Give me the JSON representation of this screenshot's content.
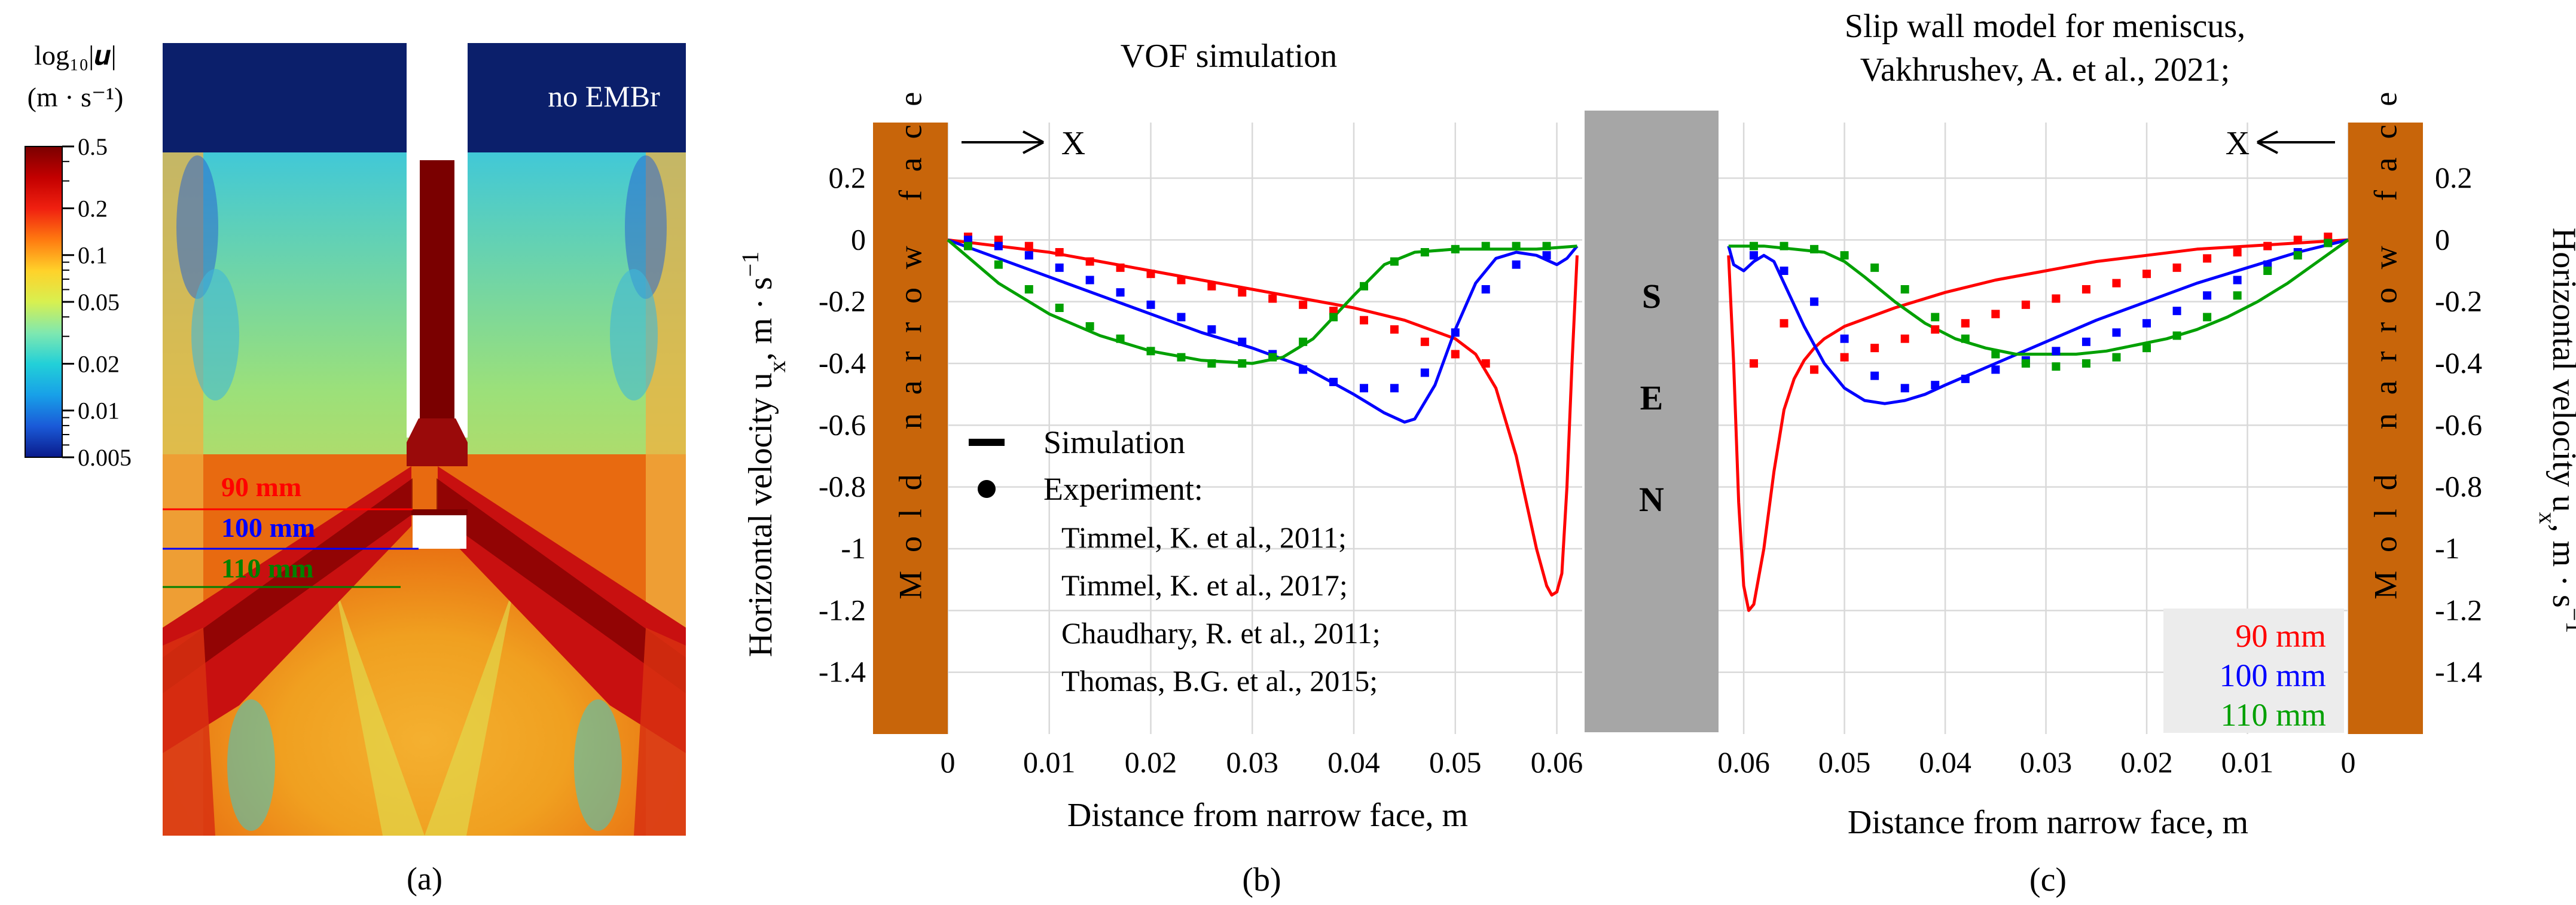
{
  "panel_a": {
    "label": "(a)",
    "overlay_text": "no EMBr",
    "colorbar": {
      "title_line1": "log₁₀|𝒖|",
      "title_line2": "(m · s⁻¹)",
      "ticks": [
        {
          "label": "0.5",
          "value": 0.5
        },
        {
          "label": "0.2",
          "value": 0.2
        },
        {
          "label": "0.1",
          "value": 0.1
        },
        {
          "label": "0.05",
          "value": 0.05
        },
        {
          "label": "0.02",
          "value": 0.02
        },
        {
          "label": "0.01",
          "value": 0.01
        },
        {
          "label": "0.005",
          "value": 0.005
        }
      ],
      "gradient_colors": [
        "#7a0000",
        "#c30000",
        "#f02010",
        "#ff7a10",
        "#ffd22a",
        "#d8f050",
        "#7fe8b0",
        "#22d0d8",
        "#18a0e8",
        "#1a5ad8",
        "#0a1a8a"
      ]
    },
    "lines": [
      {
        "label": "90 mm",
        "color": "#ff0000"
      },
      {
        "label": "100 mm",
        "color": "#0000ff"
      },
      {
        "label": "110 mm",
        "color": "#008000"
      }
    ],
    "colors": {
      "gas": "#0b1f6b",
      "jet": "#b01010",
      "jet_dark": "#6a0000",
      "bulk": "#f2a020",
      "mid": "#e8d040",
      "low": "#8ee0a8"
    }
  },
  "chart_data": [
    {
      "type": "line",
      "title": "VOF simulation",
      "panel_label": "(b)",
      "xlabel": "Distance from narrow face, m",
      "ylabel": "Horizontal velocity u",
      "ylabel_sub": "x",
      "ylabel_unit": ", m · s",
      "ylabel_sup": "−1",
      "xlim": [
        0,
        0.0625
      ],
      "ylim": [
        -1.6,
        0.38
      ],
      "xticks": [
        0,
        0.01,
        0.02,
        0.03,
        0.04,
        0.05,
        0.06
      ],
      "xtick_labels": [
        "0",
        "0.01",
        "0.02",
        "0.03",
        "0.04",
        "0.05",
        "0.06"
      ],
      "yticks": [
        0.2,
        0,
        -0.2,
        -0.4,
        -0.6,
        -0.8,
        -1,
        -1.2,
        -1.4
      ],
      "ytick_labels": [
        "0.2",
        "0",
        "-0.2",
        "-0.4",
        "-0.6",
        "-0.8",
        "-1",
        "-1.2",
        "-1.4"
      ],
      "grid": true,
      "wall_label": "Mold narrow face",
      "axis_arrow_label": "X",
      "legend": {
        "simulation_label": "Simulation",
        "experiment_label": "Experiment:",
        "references": [
          "Timmel, K. et al., 2011;",
          "Timmel, K. et al., 2017;",
          "Chaudhary, R. et al., 2011;",
          "Thomas, B.G. et al., 2015;"
        ]
      },
      "series": [
        {
          "name": "90 mm",
          "color": "#ff0000",
          "kind": "simulation",
          "x": [
            0,
            0.005,
            0.01,
            0.015,
            0.02,
            0.025,
            0.03,
            0.035,
            0.04,
            0.045,
            0.05,
            0.052,
            0.054,
            0.056,
            0.057,
            0.058,
            0.059,
            0.0595,
            0.06,
            0.0605,
            0.061,
            0.0615,
            0.062
          ],
          "y": [
            0,
            -0.02,
            -0.04,
            -0.07,
            -0.1,
            -0.13,
            -0.16,
            -0.19,
            -0.22,
            -0.26,
            -0.32,
            -0.37,
            -0.48,
            -0.7,
            -0.85,
            -1.0,
            -1.12,
            -1.15,
            -1.14,
            -1.08,
            -0.8,
            -0.4,
            -0.05
          ]
        },
        {
          "name": "100 mm",
          "color": "#0000ff",
          "kind": "simulation",
          "x": [
            0,
            0.005,
            0.01,
            0.015,
            0.02,
            0.025,
            0.03,
            0.035,
            0.04,
            0.043,
            0.045,
            0.046,
            0.048,
            0.05,
            0.052,
            0.054,
            0.056,
            0.058,
            0.06,
            0.061,
            0.062
          ],
          "y": [
            0,
            -0.06,
            -0.12,
            -0.18,
            -0.24,
            -0.3,
            -0.35,
            -0.41,
            -0.5,
            -0.56,
            -0.59,
            -0.58,
            -0.47,
            -0.29,
            -0.14,
            -0.06,
            -0.04,
            -0.05,
            -0.08,
            -0.06,
            -0.02
          ]
        },
        {
          "name": "110 mm",
          "color": "#00a000",
          "kind": "simulation",
          "x": [
            0,
            0.005,
            0.01,
            0.015,
            0.02,
            0.025,
            0.03,
            0.033,
            0.036,
            0.04,
            0.043,
            0.046,
            0.05,
            0.054,
            0.058,
            0.062
          ],
          "y": [
            0,
            -0.14,
            -0.24,
            -0.31,
            -0.36,
            -0.39,
            -0.4,
            -0.38,
            -0.32,
            -0.18,
            -0.08,
            -0.04,
            -0.03,
            -0.03,
            -0.03,
            -0.02
          ]
        },
        {
          "name": "90 mm",
          "color": "#ff0000",
          "kind": "experiment",
          "x": [
            0.002,
            0.005,
            0.008,
            0.011,
            0.014,
            0.017,
            0.02,
            0.023,
            0.026,
            0.029,
            0.032,
            0.035,
            0.038,
            0.041,
            0.044,
            0.047,
            0.05,
            0.053
          ],
          "y": [
            0.01,
            0.0,
            -0.02,
            -0.04,
            -0.07,
            -0.09,
            -0.11,
            -0.13,
            -0.15,
            -0.17,
            -0.19,
            -0.21,
            -0.23,
            -0.26,
            -0.29,
            -0.33,
            -0.37,
            -0.4
          ]
        },
        {
          "name": "100 mm",
          "color": "#0000ff",
          "kind": "experiment",
          "x": [
            0.002,
            0.005,
            0.008,
            0.011,
            0.014,
            0.017,
            0.02,
            0.023,
            0.026,
            0.029,
            0.032,
            0.035,
            0.038,
            0.041,
            0.044,
            0.047,
            0.05,
            0.053,
            0.056,
            0.059
          ],
          "y": [
            0.0,
            -0.02,
            -0.05,
            -0.09,
            -0.13,
            -0.17,
            -0.21,
            -0.25,
            -0.29,
            -0.33,
            -0.37,
            -0.42,
            -0.46,
            -0.48,
            -0.48,
            -0.43,
            -0.3,
            -0.16,
            -0.08,
            -0.05
          ]
        },
        {
          "name": "110 mm",
          "color": "#00a000",
          "kind": "experiment",
          "x": [
            0.002,
            0.005,
            0.008,
            0.011,
            0.014,
            0.017,
            0.02,
            0.023,
            0.026,
            0.029,
            0.032,
            0.035,
            0.038,
            0.041,
            0.044,
            0.047,
            0.05,
            0.053,
            0.056,
            0.059
          ],
          "y": [
            -0.02,
            -0.08,
            -0.16,
            -0.22,
            -0.28,
            -0.32,
            -0.36,
            -0.38,
            -0.4,
            -0.4,
            -0.38,
            -0.33,
            -0.25,
            -0.15,
            -0.07,
            -0.04,
            -0.03,
            -0.02,
            -0.02,
            -0.02
          ]
        }
      ]
    },
    {
      "type": "line",
      "title_line1": "Slip wall model for meniscus,",
      "title_line2": "Vakhrushev, A. et al., 2021;",
      "panel_label": "(c)",
      "xlabel": "Distance from narrow face, m",
      "ylabel": "Horizontal velocity u",
      "ylabel_sub": "x",
      "ylabel_unit": ", m · s",
      "ylabel_sup": "−1",
      "x_reversed": true,
      "xlim": [
        0.0625,
        0
      ],
      "ylim": [
        -1.6,
        0.38
      ],
      "xticks": [
        0.06,
        0.05,
        0.04,
        0.03,
        0.02,
        0.01,
        0
      ],
      "xtick_labels": [
        "0.06",
        "0.05",
        "0.04",
        "0.03",
        "0.02",
        "0.01",
        "0"
      ],
      "yticks": [
        0.2,
        0,
        -0.2,
        -0.4,
        -0.6,
        -0.8,
        -1,
        -1.2,
        -1.4
      ],
      "ytick_labels": [
        "0.2",
        "0",
        "-0.2",
        "-0.4",
        "-0.6",
        "-0.8",
        "-1",
        "-1.2",
        "-1.4"
      ],
      "grid": true,
      "wall_label": "Mold narrow face",
      "axis_arrow_label": "X",
      "legend": {
        "placement": "bottom-right",
        "entries": [
          "90 mm",
          "100 mm",
          "110 mm"
        ]
      },
      "series": [
        {
          "name": "90 mm",
          "color": "#ff0000",
          "kind": "simulation",
          "x": [
            0.0615,
            0.061,
            0.0605,
            0.06,
            0.0595,
            0.059,
            0.058,
            0.057,
            0.056,
            0.055,
            0.054,
            0.053,
            0.052,
            0.05,
            0.045,
            0.04,
            0.035,
            0.03,
            0.025,
            0.02,
            0.015,
            0.01,
            0.005,
            0
          ],
          "y": [
            -0.05,
            -0.4,
            -0.85,
            -1.12,
            -1.2,
            -1.18,
            -1.0,
            -0.75,
            -0.55,
            -0.45,
            -0.39,
            -0.35,
            -0.32,
            -0.28,
            -0.22,
            -0.17,
            -0.13,
            -0.1,
            -0.07,
            -0.05,
            -0.03,
            -0.02,
            -0.01,
            0
          ]
        },
        {
          "name": "100 mm",
          "color": "#0000ff",
          "kind": "simulation",
          "x": [
            0.0615,
            0.061,
            0.06,
            0.059,
            0.058,
            0.057,
            0.056,
            0.054,
            0.052,
            0.05,
            0.048,
            0.046,
            0.044,
            0.042,
            0.04,
            0.035,
            0.03,
            0.025,
            0.02,
            0.015,
            0.01,
            0.005,
            0
          ],
          "y": [
            -0.02,
            -0.08,
            -0.1,
            -0.07,
            -0.05,
            -0.07,
            -0.14,
            -0.28,
            -0.4,
            -0.48,
            -0.52,
            -0.53,
            -0.52,
            -0.5,
            -0.47,
            -0.4,
            -0.33,
            -0.26,
            -0.2,
            -0.14,
            -0.09,
            -0.04,
            0
          ]
        },
        {
          "name": "110 mm",
          "color": "#00a000",
          "kind": "simulation",
          "x": [
            0.0615,
            0.058,
            0.055,
            0.052,
            0.05,
            0.048,
            0.045,
            0.042,
            0.039,
            0.036,
            0.033,
            0.03,
            0.027,
            0.024,
            0.021,
            0.018,
            0.015,
            0.012,
            0.009,
            0.006,
            0.003,
            0
          ],
          "y": [
            -0.02,
            -0.02,
            -0.03,
            -0.04,
            -0.07,
            -0.12,
            -0.2,
            -0.27,
            -0.32,
            -0.35,
            -0.37,
            -0.37,
            -0.37,
            -0.36,
            -0.34,
            -0.32,
            -0.29,
            -0.25,
            -0.2,
            -0.14,
            -0.07,
            0
          ]
        },
        {
          "name": "90 mm",
          "color": "#ff0000",
          "kind": "experiment",
          "x": [
            0.059,
            0.056,
            0.053,
            0.05,
            0.047,
            0.044,
            0.041,
            0.038,
            0.035,
            0.032,
            0.029,
            0.026,
            0.023,
            0.02,
            0.017,
            0.014,
            0.011,
            0.008,
            0.005,
            0.002
          ],
          "y": [
            -0.4,
            -0.27,
            -0.42,
            -0.38,
            -0.35,
            -0.32,
            -0.29,
            -0.27,
            -0.24,
            -0.21,
            -0.19,
            -0.16,
            -0.14,
            -0.11,
            -0.09,
            -0.06,
            -0.04,
            -0.02,
            0.0,
            0.01
          ]
        },
        {
          "name": "100 mm",
          "color": "#0000ff",
          "kind": "experiment",
          "x": [
            0.059,
            0.056,
            0.053,
            0.05,
            0.047,
            0.044,
            0.041,
            0.038,
            0.035,
            0.032,
            0.029,
            0.026,
            0.023,
            0.02,
            0.017,
            0.014,
            0.011,
            0.008,
            0.005,
            0.002
          ],
          "y": [
            -0.05,
            -0.1,
            -0.2,
            -0.32,
            -0.44,
            -0.48,
            -0.47,
            -0.45,
            -0.42,
            -0.39,
            -0.36,
            -0.33,
            -0.3,
            -0.27,
            -0.23,
            -0.18,
            -0.13,
            -0.08,
            -0.04,
            -0.01
          ]
        },
        {
          "name": "110 mm",
          "color": "#00a000",
          "kind": "experiment",
          "x": [
            0.059,
            0.056,
            0.053,
            0.05,
            0.047,
            0.044,
            0.041,
            0.038,
            0.035,
            0.032,
            0.029,
            0.026,
            0.023,
            0.02,
            0.017,
            0.014,
            0.011,
            0.008,
            0.005,
            0.002
          ],
          "y": [
            -0.02,
            -0.02,
            -0.03,
            -0.05,
            -0.09,
            -0.16,
            -0.25,
            -0.32,
            -0.37,
            -0.4,
            -0.41,
            -0.4,
            -0.38,
            -0.35,
            -0.31,
            -0.25,
            -0.18,
            -0.1,
            -0.05,
            -0.01
          ]
        }
      ]
    }
  ],
  "sen": {
    "letters": [
      "S",
      "E",
      "N"
    ],
    "color": "#a6a6a6"
  },
  "wall_color": "#c8650a"
}
